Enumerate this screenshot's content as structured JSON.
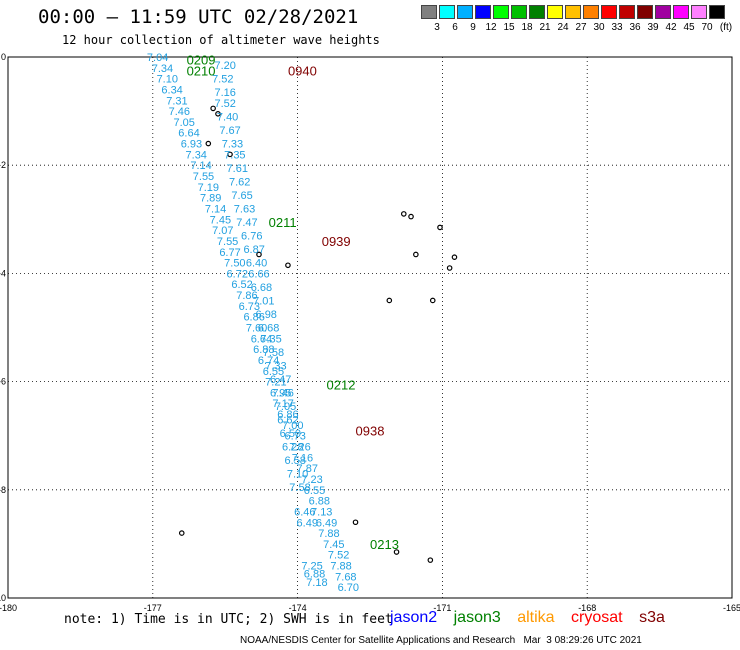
{
  "title": "00:00 – 11:59 UTC 02/28/2021",
  "subtitle": "12 hour collection of altimeter wave heights",
  "color_scale": {
    "unit_label": "(ft)",
    "labels": [
      "3",
      "6",
      "9",
      "12",
      "15",
      "18",
      "21",
      "24",
      "27",
      "30",
      "33",
      "36",
      "39",
      "42",
      "45",
      "70"
    ],
    "colors": [
      "#808080",
      "#00ffff",
      "#00b0ff",
      "#0000ff",
      "#00ff00",
      "#00c000",
      "#008000",
      "#ffff00",
      "#ffc000",
      "#ff8000",
      "#ff0000",
      "#c00000",
      "#800000",
      "#a000a0",
      "#ff00ff",
      "#ff80ff",
      "#000000"
    ]
  },
  "map": {
    "lon_ticks": [
      "-180",
      "-177",
      "-174",
      "-171",
      "-168",
      "-165"
    ],
    "lat_ticks": [
      "0",
      "-2",
      "-4",
      "-6",
      "-8",
      "-10"
    ],
    "lon_range": [
      -180,
      -165
    ],
    "lat_range": [
      -10,
      0
    ],
    "track_color": "#22a0e0",
    "pass_labels": [
      {
        "text": "0209",
        "color": "#008000",
        "lon": -176.3,
        "lat": -0.05
      },
      {
        "text": "0210",
        "color": "#008000",
        "lon": -176.3,
        "lat": -0.25
      },
      {
        "text": "0940",
        "color": "#800000",
        "lon": -174.2,
        "lat": -0.25
      },
      {
        "text": "0211",
        "color": "#008000",
        "lon": -174.6,
        "lat": -3.05
      },
      {
        "text": "0939",
        "color": "#800000",
        "lon": -173.5,
        "lat": -3.4
      },
      {
        "text": "0212",
        "color": "#008000",
        "lon": -173.4,
        "lat": -6.05
      },
      {
        "text": "0938",
        "color": "#800000",
        "lon": -172.8,
        "lat": -6.9
      },
      {
        "text": "0213",
        "color": "#008000",
        "lon": -172.5,
        "lat": -9.0
      }
    ],
    "track_west": [
      {
        "v": "7.04",
        "lon": -176.9,
        "lat": 0.0
      },
      {
        "v": "7.34",
        "lon": -176.8,
        "lat": -0.2
      },
      {
        "v": "7.10",
        "lon": -176.7,
        "lat": -0.4
      },
      {
        "v": "6.34",
        "lon": -176.6,
        "lat": -0.6
      },
      {
        "v": "7.31",
        "lon": -176.5,
        "lat": -0.8
      },
      {
        "v": "7.46",
        "lon": -176.45,
        "lat": -1.0
      },
      {
        "v": "7.05",
        "lon": -176.35,
        "lat": -1.2
      },
      {
        "v": "6.64",
        "lon": -176.25,
        "lat": -1.4
      },
      {
        "v": "6.93",
        "lon": -176.2,
        "lat": -1.6
      },
      {
        "v": "7.34",
        "lon": -176.1,
        "lat": -1.8
      },
      {
        "v": "7.14",
        "lon": -176.0,
        "lat": -2.0
      },
      {
        "v": "7.55",
        "lon": -175.95,
        "lat": -2.2
      },
      {
        "v": "7.19",
        "lon": -175.85,
        "lat": -2.4
      },
      {
        "v": "7.89",
        "lon": -175.8,
        "lat": -2.6
      },
      {
        "v": "7.14",
        "lon": -175.7,
        "lat": -2.8
      },
      {
        "v": "7.45",
        "lon": -175.6,
        "lat": -3.0
      },
      {
        "v": "7.07",
        "lon": -175.55,
        "lat": -3.2
      },
      {
        "v": "7.55",
        "lon": -175.45,
        "lat": -3.4
      },
      {
        "v": "6.77",
        "lon": -175.4,
        "lat": -3.6
      },
      {
        "v": "7.50",
        "lon": -175.3,
        "lat": -3.8
      },
      {
        "v": "6.72",
        "lon": -175.25,
        "lat": -4.0
      },
      {
        "v": "6.52",
        "lon": -175.15,
        "lat": -4.2
      },
      {
        "v": "7.86",
        "lon": -175.05,
        "lat": -4.4
      },
      {
        "v": "6.73",
        "lon": -175.0,
        "lat": -4.6
      },
      {
        "v": "6.86",
        "lon": -174.9,
        "lat": -4.8
      },
      {
        "v": "7.60",
        "lon": -174.85,
        "lat": -5.0
      },
      {
        "v": "6.64",
        "lon": -174.75,
        "lat": -5.2
      },
      {
        "v": "6.88",
        "lon": -174.7,
        "lat": -5.4
      },
      {
        "v": "6.74",
        "lon": -174.6,
        "lat": -5.6
      },
      {
        "v": "6.55",
        "lon": -174.5,
        "lat": -5.8
      },
      {
        "v": "7.21",
        "lon": -174.45,
        "lat": -6.0
      },
      {
        "v": "6.95",
        "lon": -174.35,
        "lat": -6.2
      },
      {
        "v": "7.17",
        "lon": -174.3,
        "lat": -6.4
      },
      {
        "v": "6.86",
        "lon": -174.2,
        "lat": -6.6
      },
      {
        "v": "7.00",
        "lon": -174.1,
        "lat": -6.8
      },
      {
        "v": "6.73",
        "lon": -174.05,
        "lat": -7.0
      },
      {
        "v": "7.26",
        "lon": -173.95,
        "lat": -7.2
      },
      {
        "v": "7.16",
        "lon": -173.9,
        "lat": -7.4
      },
      {
        "v": "7.87",
        "lon": -173.8,
        "lat": -7.6
      },
      {
        "v": "7.23",
        "lon": -173.7,
        "lat": -7.8
      },
      {
        "v": "6.55",
        "lon": -173.65,
        "lat": -8.0
      },
      {
        "v": "6.88",
        "lon": -173.55,
        "lat": -8.2
      },
      {
        "v": "7.13",
        "lon": -173.5,
        "lat": -8.4
      },
      {
        "v": "6.49",
        "lon": -173.4,
        "lat": -8.6
      },
      {
        "v": "7.88",
        "lon": -173.35,
        "lat": -8.8
      },
      {
        "v": "7.45",
        "lon": -173.25,
        "lat": -9.0
      },
      {
        "v": "7.52",
        "lon": -173.15,
        "lat": -9.2
      },
      {
        "v": "7.88",
        "lon": -173.1,
        "lat": -9.4
      },
      {
        "v": "7.68",
        "lon": -173.0,
        "lat": -9.6
      },
      {
        "v": "6.70",
        "lon": -172.95,
        "lat": -9.8
      }
    ],
    "track_east": [
      {
        "v": "7.20",
        "lon": -175.5,
        "lat": -0.15
      },
      {
        "v": "7.52",
        "lon": -175.55,
        "lat": -0.4
      },
      {
        "v": "7.16",
        "lon": -175.5,
        "lat": -0.65
      },
      {
        "v": "7.52",
        "lon": -175.5,
        "lat": -0.85
      },
      {
        "v": "7.40",
        "lon": -175.45,
        "lat": -1.1
      },
      {
        "v": "7.67",
        "lon": -175.4,
        "lat": -1.35
      },
      {
        "v": "7.33",
        "lon": -175.35,
        "lat": -1.6
      },
      {
        "v": "7.35",
        "lon": -175.3,
        "lat": -1.8
      },
      {
        "v": "7.61",
        "lon": -175.25,
        "lat": -2.05
      },
      {
        "v": "7.62",
        "lon": -175.2,
        "lat": -2.3
      },
      {
        "v": "7.65",
        "lon": -175.15,
        "lat": -2.55
      },
      {
        "v": "7.63",
        "lon": -175.1,
        "lat": -2.8
      },
      {
        "v": "7.47",
        "lon": -175.05,
        "lat": -3.05
      },
      {
        "v": "6.76",
        "lon": -174.95,
        "lat": -3.3
      },
      {
        "v": "6.87",
        "lon": -174.9,
        "lat": -3.55
      },
      {
        "v": "6.40",
        "lon": -174.85,
        "lat": -3.8
      },
      {
        "v": "6.66",
        "lon": -174.8,
        "lat": -4.0
      },
      {
        "v": "6.68",
        "lon": -174.75,
        "lat": -4.25
      },
      {
        "v": "7.01",
        "lon": -174.7,
        "lat": -4.5
      },
      {
        "v": "6.98",
        "lon": -174.65,
        "lat": -4.75
      },
      {
        "v": "6.68",
        "lon": -174.6,
        "lat": -5.0
      },
      {
        "v": "7.35",
        "lon": -174.55,
        "lat": -5.2
      },
      {
        "v": "7.58",
        "lon": -174.5,
        "lat": -5.45
      },
      {
        "v": "7.33",
        "lon": -174.45,
        "lat": -5.7
      },
      {
        "v": "6.47",
        "lon": -174.35,
        "lat": -5.95
      },
      {
        "v": "7.46",
        "lon": -174.3,
        "lat": -6.2
      },
      {
        "v": "7.05",
        "lon": -174.25,
        "lat": -6.45
      },
      {
        "v": "6.62",
        "lon": -174.2,
        "lat": -6.7
      },
      {
        "v": "6.50",
        "lon": -174.15,
        "lat": -6.95
      },
      {
        "v": "6.28",
        "lon": -174.1,
        "lat": -7.2
      },
      {
        "v": "6.58",
        "lon": -174.05,
        "lat": -7.45
      },
      {
        "v": "7.10",
        "lon": -174.0,
        "lat": -7.7
      },
      {
        "v": "7.58",
        "lon": -173.95,
        "lat": -7.95
      },
      {
        "v": "6.46",
        "lon": -173.85,
        "lat": -8.4
      },
      {
        "v": "6.49",
        "lon": -173.8,
        "lat": -8.6
      },
      {
        "v": "7.25",
        "lon": -173.7,
        "lat": -9.4
      },
      {
        "v": "6.88",
        "lon": -173.65,
        "lat": -9.55
      },
      {
        "v": "7.18",
        "lon": -173.6,
        "lat": -9.7
      }
    ],
    "islands": [
      {
        "lon": -175.75,
        "lat": -0.95
      },
      {
        "lon": -175.65,
        "lat": -1.05
      },
      {
        "lon": -175.85,
        "lat": -1.6
      },
      {
        "lon": -175.4,
        "lat": -1.8
      },
      {
        "lon": -174.8,
        "lat": -3.65
      },
      {
        "lon": -174.2,
        "lat": -3.85
      },
      {
        "lon": -171.8,
        "lat": -2.9
      },
      {
        "lon": -171.65,
        "lat": -2.95
      },
      {
        "lon": -171.05,
        "lat": -3.15
      },
      {
        "lon": -171.55,
        "lat": -3.65
      },
      {
        "lon": -170.75,
        "lat": -3.7
      },
      {
        "lon": -170.85,
        "lat": -3.9
      },
      {
        "lon": -171.2,
        "lat": -4.5
      },
      {
        "lon": -172.1,
        "lat": -4.5
      },
      {
        "lon": -172.8,
        "lat": -8.6
      },
      {
        "lon": -171.95,
        "lat": -9.15
      },
      {
        "lon": -171.25,
        "lat": -9.3
      },
      {
        "lon": -176.4,
        "lat": -8.8
      }
    ]
  },
  "note": "note: 1) Time is in UTC; 2) SWH is in feet",
  "satellites": [
    {
      "name": "jason2",
      "color": "#0000ff"
    },
    {
      "name": "jason3",
      "color": "#008000"
    },
    {
      "name": "altika",
      "color": "#ff9900"
    },
    {
      "name": "cryosat",
      "color": "#ff0000"
    },
    {
      "name": "s3a",
      "color": "#800000"
    }
  ],
  "footer": "NOAA/NESDIS Center for Satellite Applications and Research   Mar  3 08:29:26 UTC 2021"
}
